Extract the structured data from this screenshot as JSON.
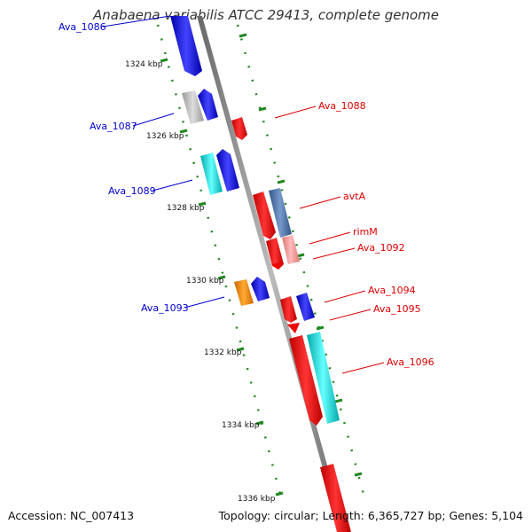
{
  "header": {
    "title": "Anabaena variabilis ATCC 29413, complete genome"
  },
  "footer": {
    "accession": "Accession: NC_007413",
    "summary": "Topology: circular; Length: 6,365,727 bp; Genes: 5,104"
  },
  "ticks": [
    "1324 kbp",
    "1326 kbp",
    "1328 kbp",
    "1330 kbp",
    "1332 kbp",
    "1334 kbp",
    "1336 kbp"
  ],
  "genes_left": [
    {
      "label": "Ava_1086",
      "color": "#0000cc"
    },
    {
      "label": "Ava_1087",
      "color": "#0000cc"
    },
    {
      "label": "Ava_1089",
      "color": "#0000cc"
    },
    {
      "label": "Ava_1093",
      "color": "#0000cc"
    }
  ],
  "genes_right": [
    {
      "label": "Ava_1088",
      "color": "#dd0000"
    },
    {
      "label": "avtA",
      "color": "#dd0000"
    },
    {
      "label": "rimM",
      "color": "#dd0000"
    },
    {
      "label": "Ava_1092",
      "color": "#dd0000"
    },
    {
      "label": "Ava_1094",
      "color": "#dd0000"
    },
    {
      "label": "Ava_1095",
      "color": "#dd0000"
    },
    {
      "label": "Ava_1096",
      "color": "#dd0000"
    }
  ],
  "colors": {
    "backbone": "#888888",
    "forward_cds": "#0000ee",
    "reverse_cds": "#ee0000",
    "gray_gene": "#aaaaaa",
    "cyan_gene": "#00cccc",
    "steelblue_gene": "#4477aa",
    "pink_gene": "#ee8888",
    "orange_gene": "#ee8800",
    "dotted_ring": "#228822"
  }
}
